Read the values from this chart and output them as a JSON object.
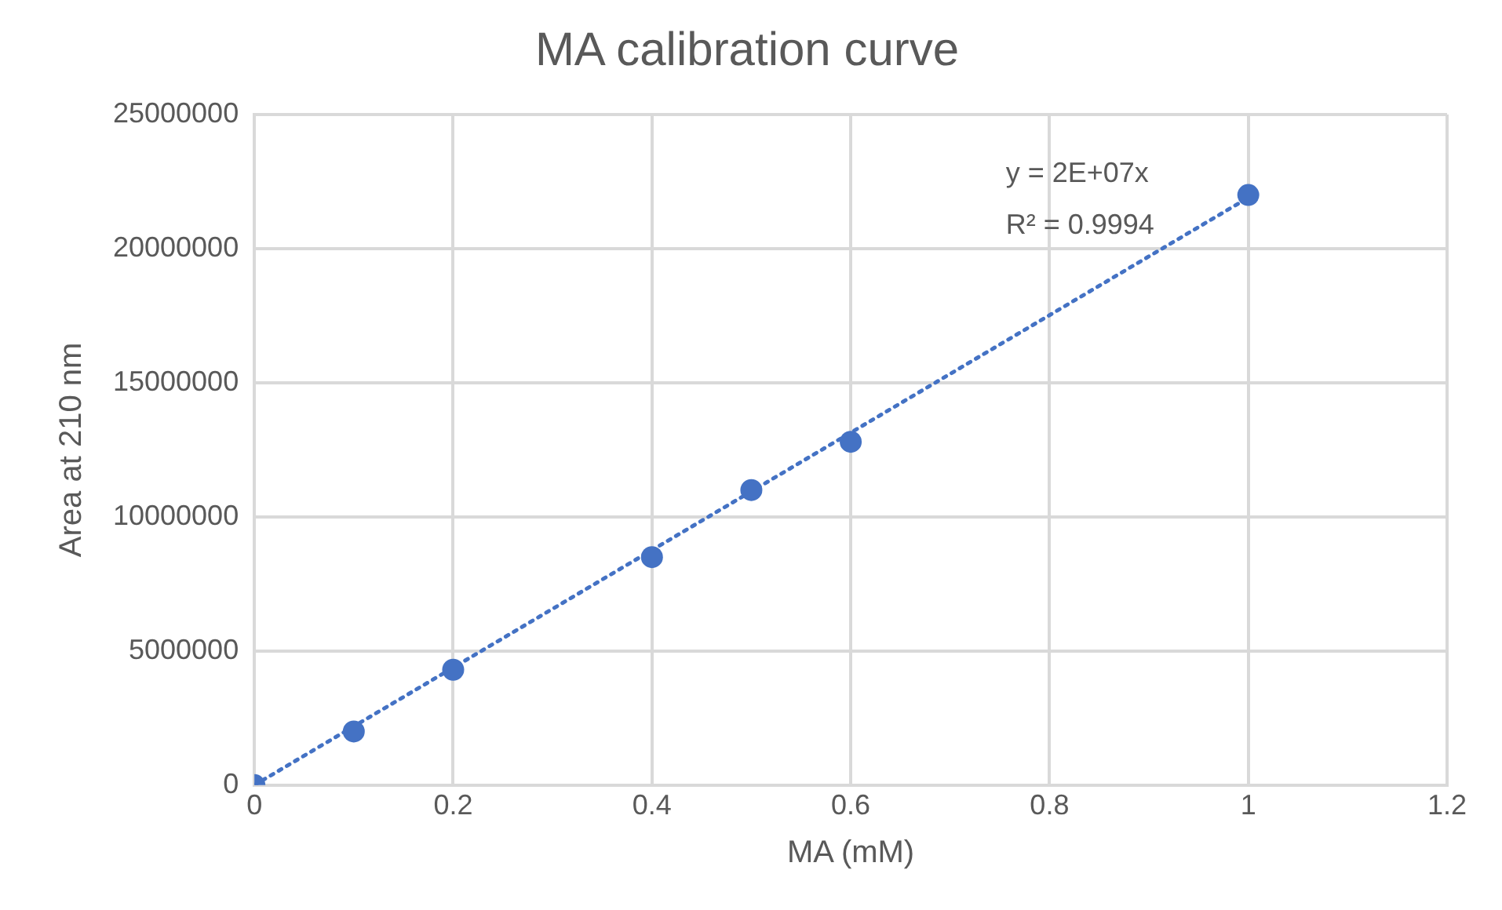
{
  "chart_data": {
    "type": "scatter",
    "title": "MA calibration curve",
    "xlabel": "MA (mM)",
    "ylabel": "Area at 210 nm",
    "series": [
      {
        "type": "scatter",
        "color": "#4472c4",
        "x": [
          0,
          0.1,
          0.2,
          0.4,
          0.5,
          0.6,
          1
        ],
        "values": [
          0,
          2000000,
          4300000,
          8500000,
          11000000,
          12800000,
          22000000
        ],
        "marker": "circle"
      },
      {
        "type": "line",
        "color": "#4472c4",
        "x": [
          0,
          1
        ],
        "values": [
          0,
          21900000
        ],
        "line_style": "dotted",
        "marker": "none"
      }
    ],
    "xlim": [
      0,
      1.2
    ],
    "xticks": [
      0,
      0.2,
      0.4,
      0.6,
      0.8,
      1,
      1.2
    ],
    "ylim": [
      0,
      25000000
    ],
    "yticks": [
      0,
      5000000,
      10000000,
      15000000,
      20000000,
      25000000
    ],
    "grid": true,
    "legend": false,
    "annotations": [
      "y = 2E+07x",
      "R² = 0.9994"
    ]
  }
}
